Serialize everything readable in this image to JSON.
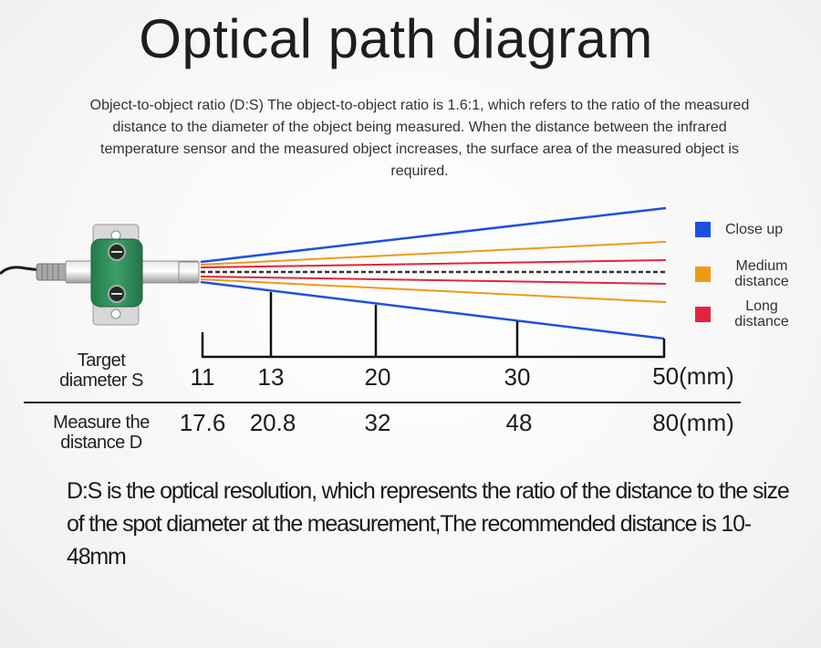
{
  "title": "Optical path diagram",
  "intro": "Object-to-object ratio (D:S) The object-to-object ratio is 1.6:1, which refers to the ratio of the measured distance to the diameter of the object being measured. When the distance between the infrared temperature sensor and the measured object increases, the surface area of the measured object is required.",
  "legend": [
    {
      "label": "Close up",
      "color": "#1f4fe0"
    },
    {
      "label": "Medium distance",
      "color": "#ef9a16"
    },
    {
      "label": "Long distance",
      "color": "#e3243f"
    }
  ],
  "table": {
    "target_label": "Target diameter S",
    "distance_label": "Measure the distance D",
    "target_values": [
      "11",
      "13",
      "20",
      "30",
      "50(mm)"
    ],
    "distance_values": [
      "17.6",
      "20.8",
      "32",
      "48",
      "80(mm)"
    ]
  },
  "note": "D:S is the optical resolution, which represents the ratio of the distance to the size of the spot diameter at the measurement,The recommended distance is 10-48mm",
  "colors": {
    "sensor_body": "#2f8d5a",
    "centerline": "#333333"
  }
}
